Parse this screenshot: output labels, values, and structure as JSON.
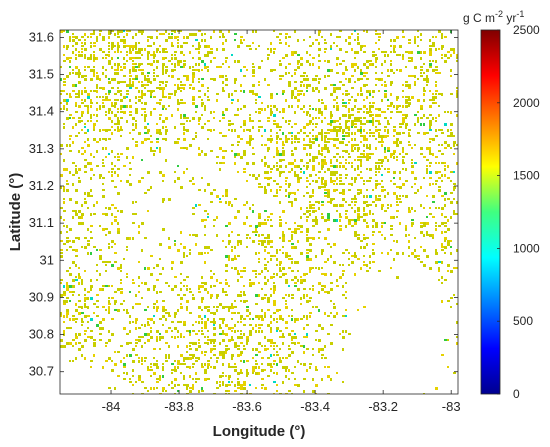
{
  "figure": {
    "xlabel": "Longitude (°)",
    "ylabel": "Latitude (°)",
    "colorbar_label": {
      "prefix": "g C m",
      "sup1": "-2",
      "mid": " yr",
      "sup2": "-1"
    }
  },
  "map": {
    "x_range": [
      -84.15,
      -82.98
    ],
    "y_range": [
      30.64,
      31.62
    ],
    "x_ticks": [
      -84,
      -83.8,
      -83.6,
      -83.4,
      -83.2,
      -83
    ],
    "x_tick_labels": [
      "-84",
      "-83.8",
      "-83.6",
      "-83.4",
      "-83.2",
      "-83"
    ],
    "y_ticks": [
      30.7,
      30.8,
      30.9,
      31,
      31.1,
      31.2,
      31.3,
      31.4,
      31.5,
      31.6
    ],
    "y_tick_labels": [
      "30.7",
      "30.8",
      "30.9",
      "31",
      "31.1",
      "31.2",
      "31.3",
      "31.4",
      "31.5",
      "31.6"
    ],
    "colormap": "jet",
    "dominant_value_range": [
      1300,
      1600
    ],
    "colors": {
      "dominant": "#c8cf00",
      "secondary": "#e6d200",
      "green": "#2ecc40",
      "cyan": "#00d9c5",
      "background": "#ffffff"
    }
  },
  "colorbar": {
    "range": [
      0,
      2500
    ],
    "ticks": [
      0,
      500,
      1000,
      1500,
      2000,
      2500
    ],
    "tick_labels": [
      "0",
      "500",
      "1000",
      "1500",
      "2000",
      "2500"
    ],
    "colormap": "jet"
  }
}
